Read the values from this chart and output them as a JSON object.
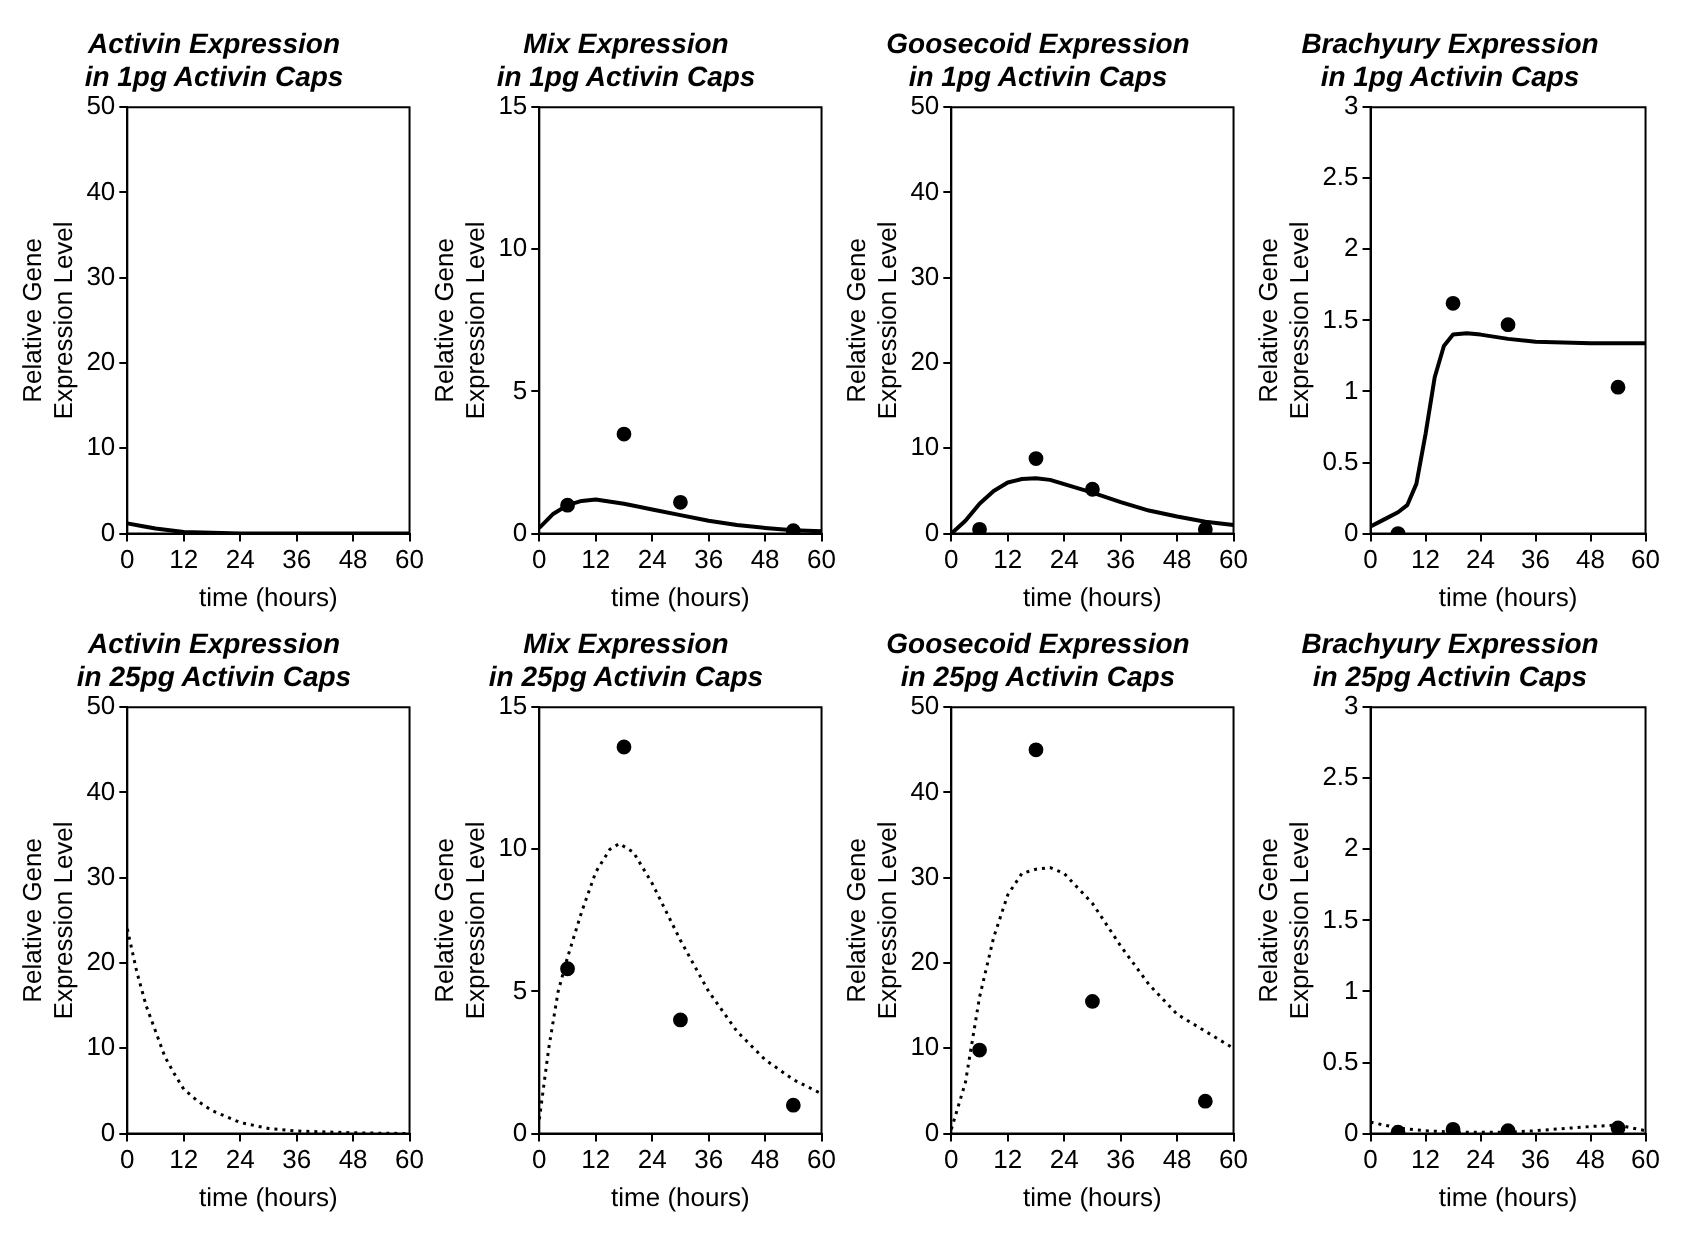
{
  "chart_data": [
    {
      "type": "line",
      "title": "Activin Expression\nin 1pg Activin Caps",
      "xlabel": "time (hours)",
      "ylabel": "Relative Gene\nExpression Level",
      "xlim": [
        0,
        60
      ],
      "xticks": [
        0,
        12,
        24,
        36,
        48,
        60
      ],
      "ylim": [
        0,
        50
      ],
      "yticks": [
        0,
        10,
        20,
        30,
        40,
        50
      ],
      "grid": false,
      "series": [
        {
          "type": "line",
          "color": "#000000",
          "line_style": "solid",
          "marker": "none",
          "x": [
            0,
            3,
            6,
            9,
            12,
            18,
            24,
            36,
            48,
            60
          ],
          "values": [
            1.2,
            0.9,
            0.6,
            0.4,
            0.2,
            0.1,
            0,
            0,
            0,
            0
          ]
        }
      ]
    },
    {
      "type": "line",
      "title": "Mix Expression\nin 1pg Activin Caps",
      "xlabel": "time (hours)",
      "ylabel": "Relative Gene\nExpression Level",
      "xlim": [
        0,
        60
      ],
      "xticks": [
        0,
        12,
        24,
        36,
        48,
        60
      ],
      "ylim": [
        0,
        15
      ],
      "yticks": [
        0,
        5,
        10,
        15
      ],
      "grid": false,
      "series": [
        {
          "type": "line",
          "color": "#000000",
          "line_style": "solid",
          "marker": "none",
          "x": [
            0,
            3,
            6,
            9,
            12,
            18,
            24,
            30,
            36,
            42,
            48,
            54,
            60
          ],
          "values": [
            0.2,
            0.7,
            1.0,
            1.15,
            1.2,
            1.05,
            0.85,
            0.65,
            0.45,
            0.3,
            0.2,
            0.12,
            0.08
          ]
        },
        {
          "type": "scatter",
          "color": "#000000",
          "marker": "circle",
          "x": [
            6,
            18,
            30,
            54
          ],
          "values": [
            1.0,
            3.5,
            1.1,
            0.1
          ]
        }
      ]
    },
    {
      "type": "line",
      "title": "Goosecoid Expression\nin 1pg Activin Caps",
      "xlabel": "time (hours)",
      "ylabel": "Relative Gene\nExpression Level",
      "xlim": [
        0,
        60
      ],
      "xticks": [
        0,
        12,
        24,
        36,
        48,
        60
      ],
      "ylim": [
        0,
        50
      ],
      "yticks": [
        0,
        10,
        20,
        30,
        40,
        50
      ],
      "grid": false,
      "series": [
        {
          "type": "line",
          "color": "#000000",
          "line_style": "solid",
          "marker": "none",
          "x": [
            0,
            3,
            6,
            9,
            12,
            15,
            18,
            21,
            24,
            30,
            36,
            42,
            48,
            54,
            60
          ],
          "values": [
            0,
            1.5,
            3.5,
            5,
            6,
            6.4,
            6.5,
            6.3,
            5.8,
            4.8,
            3.7,
            2.7,
            2.0,
            1.4,
            1.0
          ]
        },
        {
          "type": "scatter",
          "color": "#000000",
          "marker": "circle",
          "x": [
            6,
            18,
            30,
            54
          ],
          "values": [
            0.5,
            8.8,
            5.2,
            0.5
          ]
        }
      ]
    },
    {
      "type": "line",
      "title": "Brachyury Expression\nin 1pg Activin Caps",
      "xlabel": "time (hours)",
      "ylabel": "Relative Gene\nExpression Level",
      "xlim": [
        0,
        60
      ],
      "xticks": [
        0,
        12,
        24,
        36,
        48,
        60
      ],
      "ylim": [
        0,
        3
      ],
      "yticks": [
        0,
        0.5,
        1,
        1.5,
        2,
        2.5,
        3
      ],
      "grid": false,
      "series": [
        {
          "type": "line",
          "color": "#000000",
          "line_style": "solid",
          "marker": "none",
          "x": [
            0,
            3,
            6,
            8,
            10,
            12,
            14,
            16,
            18,
            21,
            24,
            30,
            36,
            48,
            60
          ],
          "values": [
            0.05,
            0.1,
            0.15,
            0.2,
            0.35,
            0.7,
            1.1,
            1.32,
            1.4,
            1.41,
            1.4,
            1.37,
            1.35,
            1.34,
            1.34
          ]
        },
        {
          "type": "scatter",
          "color": "#000000",
          "marker": "circle",
          "x": [
            6,
            18,
            30,
            54
          ],
          "values": [
            0.0,
            1.62,
            1.47,
            1.03
          ]
        }
      ]
    },
    {
      "type": "line",
      "title": "Activin Expression\nin 25pg Activin Caps",
      "xlabel": "time (hours)",
      "ylabel": "Relative Gene\nExpression Level",
      "xlim": [
        0,
        60
      ],
      "xticks": [
        0,
        12,
        24,
        36,
        48,
        60
      ],
      "ylim": [
        0,
        50
      ],
      "yticks": [
        0,
        10,
        20,
        30,
        40,
        50
      ],
      "grid": false,
      "series": [
        {
          "type": "line",
          "color": "#000000",
          "line_style": "dotted",
          "marker": "none",
          "x": [
            0,
            2,
            4,
            6,
            8,
            10,
            12,
            15,
            18,
            24,
            30,
            36,
            48,
            60
          ],
          "values": [
            24,
            19,
            15,
            12,
            9,
            7,
            5.2,
            3.8,
            2.7,
            1.3,
            0.6,
            0.3,
            0.1,
            0
          ]
        }
      ]
    },
    {
      "type": "line",
      "title": "Mix Expression\nin 25pg Activin Caps",
      "xlabel": "time (hours)",
      "ylabel": "Relative Gene\nExpression Level",
      "xlim": [
        0,
        60
      ],
      "xticks": [
        0,
        12,
        24,
        36,
        48,
        60
      ],
      "ylim": [
        0,
        15
      ],
      "yticks": [
        0,
        5,
        10,
        15
      ],
      "grid": false,
      "series": [
        {
          "type": "line",
          "color": "#000000",
          "line_style": "dotted",
          "marker": "none",
          "x": [
            0,
            2,
            4,
            6,
            9,
            12,
            15,
            17,
            20,
            24,
            30,
            36,
            42,
            48,
            54,
            60
          ],
          "values": [
            0.5,
            3,
            5,
            6.2,
            7.8,
            9.2,
            10,
            10.2,
            9.9,
            8.8,
            6.8,
            5,
            3.6,
            2.6,
            1.9,
            1.4
          ]
        },
        {
          "type": "scatter",
          "color": "#000000",
          "marker": "circle",
          "x": [
            6,
            18,
            30,
            54
          ],
          "values": [
            5.8,
            13.6,
            4.0,
            1.0
          ]
        }
      ]
    },
    {
      "type": "line",
      "title": "Goosecoid Expression\nin 25pg Activin Caps",
      "xlabel": "time (hours)",
      "ylabel": "Relative Gene\nExpression Level",
      "xlim": [
        0,
        60
      ],
      "xticks": [
        0,
        12,
        24,
        36,
        48,
        60
      ],
      "ylim": [
        0,
        50
      ],
      "yticks": [
        0,
        10,
        20,
        30,
        40,
        50
      ],
      "grid": false,
      "series": [
        {
          "type": "line",
          "color": "#000000",
          "line_style": "dotted",
          "marker": "none",
          "x": [
            0,
            3,
            6,
            9,
            12,
            15,
            18,
            21,
            24,
            30,
            36,
            42,
            48,
            54,
            60
          ],
          "values": [
            0.5,
            6,
            16,
            23,
            28,
            30.5,
            31,
            31.2,
            30.5,
            27,
            22,
            17.5,
            14,
            12,
            10
          ]
        },
        {
          "type": "scatter",
          "color": "#000000",
          "marker": "circle",
          "x": [
            6,
            18,
            30,
            54
          ],
          "values": [
            9.8,
            45,
            15.5,
            3.8
          ]
        }
      ]
    },
    {
      "type": "line",
      "title": "Brachyury Expression\nin 25pg Activin Caps",
      "xlabel": "time (hours)",
      "ylabel": "Relative Gene\nExpression Level",
      "xlim": [
        0,
        60
      ],
      "xticks": [
        0,
        12,
        24,
        36,
        48,
        60
      ],
      "ylim": [
        0,
        3
      ],
      "yticks": [
        0,
        0.5,
        1,
        1.5,
        2,
        2.5,
        3
      ],
      "grid": false,
      "series": [
        {
          "type": "line",
          "color": "#000000",
          "line_style": "dotted",
          "marker": "none",
          "x": [
            0,
            6,
            12,
            18,
            24,
            30,
            36,
            48,
            54,
            60
          ],
          "values": [
            0.08,
            0.04,
            0.02,
            0.01,
            0.01,
            0.01,
            0.02,
            0.05,
            0.06,
            0.02
          ]
        },
        {
          "type": "scatter",
          "color": "#000000",
          "marker": "circle",
          "x": [
            6,
            18,
            30,
            54
          ],
          "values": [
            0.01,
            0.03,
            0.02,
            0.04
          ]
        }
      ]
    }
  ]
}
